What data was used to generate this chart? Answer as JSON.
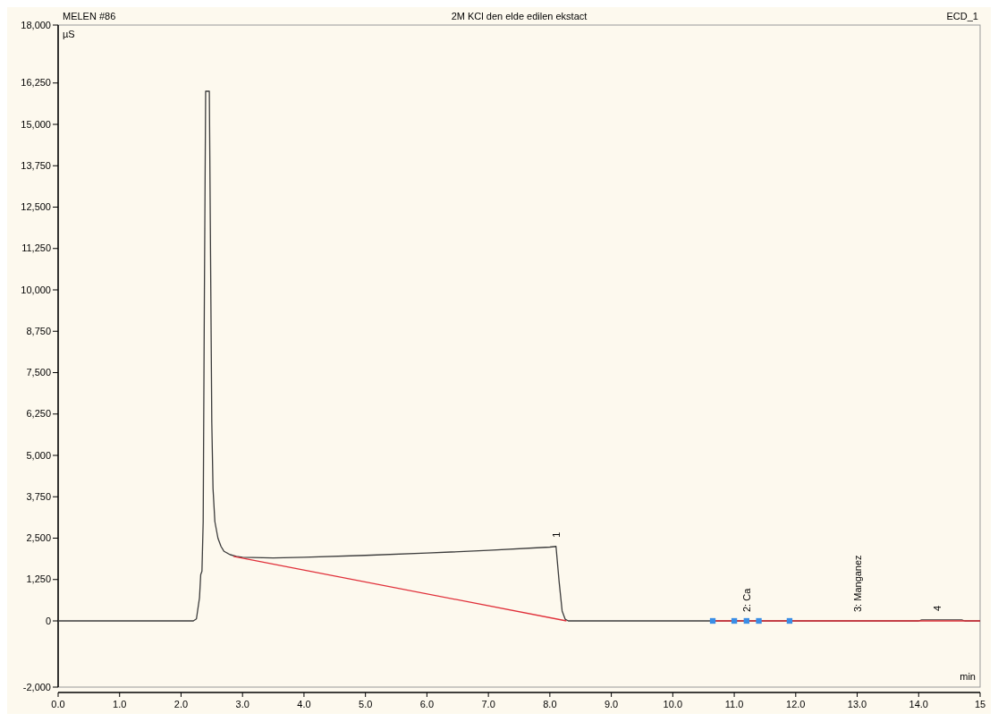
{
  "chart_data": {
    "type": "line",
    "title": "2M KCl den elde edilen ekstact",
    "xlabel": "min",
    "ylabel": "µS",
    "annotations": [
      "MELEN #86",
      "ECD_1",
      {
        "text": "1",
        "x": 8.1,
        "y": 2250
      },
      {
        "text": "2: Ca",
        "x": 11.2,
        "y": 0
      },
      {
        "text": "3: Manganez",
        "x": 13.0,
        "y": 0
      },
      {
        "text": "4",
        "x": 14.3,
        "y": 30
      }
    ],
    "xlim": [
      0,
      15
    ],
    "xticks": [
      {
        "value": 0,
        "label": "0.0"
      },
      {
        "value": 1,
        "label": "1.0"
      },
      {
        "value": 2,
        "label": "2.0"
      },
      {
        "value": 3,
        "label": "3.0"
      },
      {
        "value": 4,
        "label": "4.0"
      },
      {
        "value": 5,
        "label": "5.0"
      },
      {
        "value": 6,
        "label": "6.0"
      },
      {
        "value": 7,
        "label": "7.0"
      },
      {
        "value": 8,
        "label": "8.0"
      },
      {
        "value": 9,
        "label": "9.0"
      },
      {
        "value": 10,
        "label": "10.0"
      },
      {
        "value": 11,
        "label": "11.0"
      },
      {
        "value": 12,
        "label": "12.0"
      },
      {
        "value": 13,
        "label": "13.0"
      },
      {
        "value": 14,
        "label": "14.0"
      },
      {
        "value": 15,
        "label": "15"
      }
    ],
    "ylim": [
      -2000,
      18000
    ],
    "yticks": [
      {
        "value": -2000,
        "label": "-2,000"
      },
      0,
      {
        "value": 1250,
        "label": "1,250"
      },
      {
        "value": 2500,
        "label": "2,500"
      },
      {
        "value": 3750,
        "label": "3,750"
      },
      {
        "value": 5000,
        "label": "5,000"
      },
      {
        "value": 6250,
        "label": "6,250"
      },
      {
        "value": 7500,
        "label": "7,500"
      },
      {
        "value": 8750,
        "label": "8,750"
      },
      {
        "value": 10000,
        "label": "10,000"
      },
      {
        "value": 11250,
        "label": "11,250"
      },
      {
        "value": 12500,
        "label": "12,500"
      },
      {
        "value": 13750,
        "label": "13,750"
      },
      {
        "value": 15000,
        "label": "15,000"
      },
      {
        "value": 16250,
        "label": "16,250"
      },
      {
        "value": 18000,
        "label": "18,000"
      }
    ],
    "grid": false,
    "series": [
      {
        "color": "#3c3c3c",
        "x": [
          0,
          2.2,
          2.25,
          2.3,
          2.32,
          2.34,
          2.36,
          2.38,
          2.4,
          2.42,
          2.46,
          2.48,
          2.5,
          2.52,
          2.55,
          2.6,
          2.65,
          2.7,
          2.8,
          2.9,
          3.0,
          3.5,
          4.0,
          5.0,
          6.0,
          7.0,
          8.0,
          8.1,
          8.15,
          8.2,
          8.25,
          8.3,
          9.0,
          10.0,
          10.65,
          11.0,
          12.0,
          13.0,
          14.0,
          14.05,
          14.7,
          14.75,
          15.0
        ],
        "values": [
          0,
          0,
          60,
          700,
          1400,
          1500,
          3000,
          10000,
          16000,
          16000,
          16000,
          11000,
          6000,
          4000,
          3000,
          2500,
          2250,
          2100,
          2000,
          1950,
          1920,
          1900,
          1920,
          1980,
          2050,
          2130,
          2230,
          2250,
          1200,
          300,
          50,
          0,
          0,
          0,
          0,
          0,
          0,
          0,
          0,
          30,
          30,
          0,
          0
        ]
      },
      {
        "color": "#e0303a",
        "x": [
          2.85,
          8.27,
          8.28,
          10.65,
          10.66,
          15.0
        ],
        "values": [
          1950,
          0,
          null,
          null,
          0,
          0
        ]
      },
      {
        "type": "scatter",
        "marker": "square",
        "color": "#3a8ee6",
        "x": [
          10.65,
          11.0,
          11.2,
          11.4,
          11.9
        ],
        "values": [
          0,
          0,
          0,
          0,
          0
        ]
      }
    ]
  }
}
